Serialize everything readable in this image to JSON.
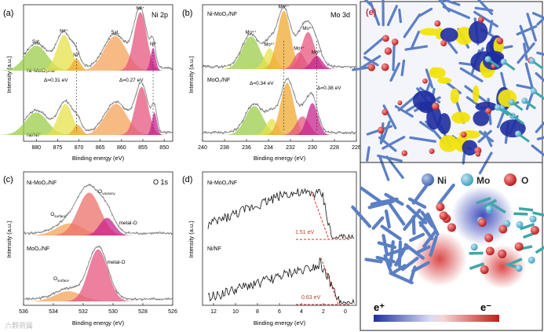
{
  "chart_data": [
    {
      "type": "line",
      "panel_label": "(a)",
      "title": "Ni 2p",
      "xlabel": "Binding energy (eV)",
      "ylabel": "Intensity (a.u.)",
      "xlim": [
        883,
        848
      ],
      "x_ticks": [
        880,
        875,
        870,
        865,
        860,
        855,
        850
      ],
      "samples": [
        {
          "name": "Ni-MoO₂/NF",
          "peaks": [
            {
              "label": "Sat.",
              "center": 880.0,
              "height": 0.42,
              "width": 2.6,
              "color": "#9ccc4a"
            },
            {
              "label": "Ni²⁺",
              "center": 873.5,
              "height": 0.6,
              "width": 1.7,
              "color": "#e6e24a"
            },
            {
              "label": "Ni⁰",
              "center": 870.6,
              "height": 0.2,
              "width": 1.0,
              "color": "#f0a830"
            },
            {
              "label": "Sat.",
              "center": 861.5,
              "height": 0.58,
              "width": 2.6,
              "color": "#f5a35a"
            },
            {
              "label": "Ni²⁺",
              "center": 855.6,
              "height": 0.98,
              "width": 1.5,
              "color": "#e6567e"
            },
            {
              "label": "Ni⁰",
              "center": 852.6,
              "height": 0.38,
              "width": 0.6,
              "color": "#c8238c"
            }
          ],
          "shift_label": "Δ=0.31 eV",
          "shift_label2": "Δ=0.27 eV"
        },
        {
          "name": "Ni/NF",
          "peaks": [
            {
              "label": "Sat.",
              "center": 880.0,
              "height": 0.4,
              "width": 2.6,
              "color": "#9ccc4a"
            },
            {
              "label": "Ni²⁺",
              "center": 873.2,
              "height": 0.55,
              "width": 1.7,
              "color": "#e6e24a"
            },
            {
              "label": "Ni⁰",
              "center": 870.3,
              "height": 0.18,
              "width": 1.0,
              "color": "#f0a830"
            },
            {
              "label": "Sat.",
              "center": 861.3,
              "height": 0.55,
              "width": 2.6,
              "color": "#f5a35a"
            },
            {
              "label": "Ni²⁺",
              "center": 855.3,
              "height": 0.85,
              "width": 1.5,
              "color": "#e6567e"
            },
            {
              "label": "Ni⁰",
              "center": 852.3,
              "height": 0.4,
              "width": 0.6,
              "color": "#c8238c"
            }
          ]
        }
      ]
    },
    {
      "type": "line",
      "panel_label": "(b)",
      "title": "Mo 3d",
      "xlabel": "Binding energy (eV)",
      "ylabel": "Intensity (a.u.)",
      "xlim": [
        240,
        226
      ],
      "x_ticks": [
        240,
        238,
        236,
        234,
        232,
        230,
        228,
        226
      ],
      "samples": [
        {
          "name": "Ni-MoO₂/NF",
          "peaks": [
            {
              "label": "Mo⁴⁺",
              "center": 235.6,
              "height": 0.55,
              "width": 0.8,
              "color": "#9ccc4a"
            },
            {
              "label": "Mo⁵⁺",
              "center": 233.9,
              "height": 0.35,
              "width": 0.5,
              "color": "#e6e24a"
            },
            {
              "label": "Mo⁶⁺",
              "center": 232.6,
              "height": 0.98,
              "width": 0.6,
              "color": "#f0a830"
            },
            {
              "label": "Mo⁵⁺",
              "center": 231.2,
              "height": 0.28,
              "width": 0.5,
              "color": "#e6567e"
            },
            {
              "label": "Mo⁴⁺",
              "center": 230.4,
              "height": 0.62,
              "width": 0.6,
              "color": "#e6567e"
            },
            {
              "label": "Mo³⁺",
              "center": 229.6,
              "height": 0.22,
              "width": 0.5,
              "color": "#c8238c"
            }
          ],
          "label_mo6_left": "Mo⁶⁺",
          "label_mo5_right": "Mo⁵⁺"
        },
        {
          "name": "MoO₂/NF",
          "peaks": [
            {
              "label": "Mo⁴⁺",
              "center": 235.3,
              "height": 0.5,
              "width": 0.8,
              "color": "#9ccc4a"
            },
            {
              "label": "Mo⁵⁺",
              "center": 233.7,
              "height": 0.28,
              "width": 0.5,
              "color": "#e6e24a"
            },
            {
              "label": "Mo⁶⁺",
              "center": 232.3,
              "height": 0.9,
              "width": 0.6,
              "color": "#f0a830"
            },
            {
              "label": "Mo⁴⁺",
              "center": 230.9,
              "height": 0.32,
              "width": 0.6,
              "color": "#e6567e"
            },
            {
              "label": "Mo³⁺",
              "center": 230.0,
              "height": 0.55,
              "width": 0.5,
              "color": "#c8238c"
            }
          ],
          "shift_label": "Δ=0.34 eV",
          "shift_label2": "Δ=0.38 eV"
        }
      ]
    },
    {
      "type": "line",
      "panel_label": "(c)",
      "title": "O 1s",
      "xlabel": "Binding energy (eV)",
      "ylabel": "Intensity (a.u.)",
      "xlim": [
        536,
        526
      ],
      "x_ticks": [
        536,
        534,
        532,
        530,
        528,
        526
      ],
      "samples": [
        {
          "name": "Ni-MoO₂/NF",
          "peaks": [
            {
              "label": "O_surface",
              "center": 532.9,
              "height": 0.22,
              "width": 0.9,
              "color": "#f5a35a"
            },
            {
              "label": "O_vacancy",
              "center": 531.6,
              "height": 0.78,
              "width": 0.75,
              "color": "#ec6f6a"
            },
            {
              "label": "metal-O",
              "center": 530.4,
              "height": 0.32,
              "width": 0.5,
              "color": "#c8238c"
            }
          ],
          "labels": {
            "surface": "O",
            "surface_sub": "surface",
            "vacancy": "O",
            "vacancy_sub": "vacancy",
            "metal": "metal-O"
          }
        },
        {
          "name": "MoO₂/NF",
          "peaks": [
            {
              "label": "O_surface",
              "center": 533.0,
              "height": 0.18,
              "width": 0.9,
              "color": "#f5a35a"
            },
            {
              "label": "metal-O",
              "center": 531.0,
              "height": 0.92,
              "width": 0.65,
              "color": "#e6567e"
            }
          ],
          "labels": {
            "surface": "O",
            "surface_sub": "surface",
            "metal": "metal-O"
          }
        }
      ]
    },
    {
      "type": "line",
      "panel_label": "(d)",
      "xlabel": "Binding energy (eV)",
      "ylabel": "Intensity (a.u.)",
      "xlim": [
        13,
        -1
      ],
      "x_ticks": [
        12,
        10,
        8,
        6,
        4,
        2,
        0
      ],
      "samples": [
        {
          "name": "Ni-MoO₂/NF",
          "edge_value": "1.51 eV",
          "edge": 1.51
        },
        {
          "name": "Ni/NF",
          "edge_value": "0.63 eV",
          "edge": 0.63
        }
      ]
    }
  ],
  "panel_e": {
    "label": "(e)",
    "legend": [
      {
        "name": "Ni",
        "color": "#5b7fc4"
      },
      {
        "name": "Mo",
        "color": "#62b7d6"
      },
      {
        "name": "O",
        "color": "#d62a2a"
      }
    ],
    "colorbar_low": "e⁺",
    "colorbar_high": "e⁻"
  },
  "watermark": "六颗荷属"
}
